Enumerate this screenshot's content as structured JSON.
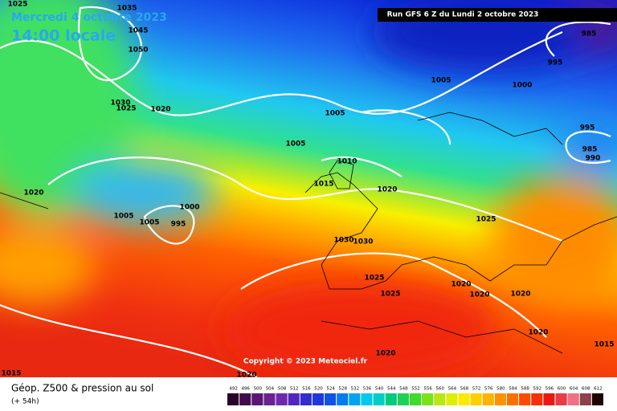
{
  "header": {
    "date": "Mercredi 4 octobre 2023",
    "time": "14:00 locale",
    "run": "Run GFS 6 Z du Lundi 2 octobre 2023"
  },
  "copyright": "Copyright © 2023 Meteociel.fr",
  "footer": {
    "title": "Géop. Z500 & pression au sol",
    "lead": "(+ 54h)"
  },
  "isobar_labels": [
    1025,
    1035,
    1045,
    1050,
    1030,
    1025,
    1020,
    1005,
    1005,
    1010,
    1015,
    1020,
    1020,
    1000,
    1005,
    1005,
    995,
    1030,
    1030,
    1025,
    1025,
    1020,
    1020,
    1020,
    1020,
    1015,
    1020,
    1020,
    1015,
    985,
    995,
    1005,
    1000,
    995,
    985,
    990,
    1025
  ],
  "scale_labels": [
    492,
    496,
    500,
    504,
    508,
    512,
    516,
    520,
    524,
    528,
    532,
    536,
    540,
    544,
    548,
    552,
    556,
    560,
    564,
    568,
    572,
    576,
    580,
    584,
    588,
    592,
    596,
    600,
    604,
    608,
    612
  ]
}
